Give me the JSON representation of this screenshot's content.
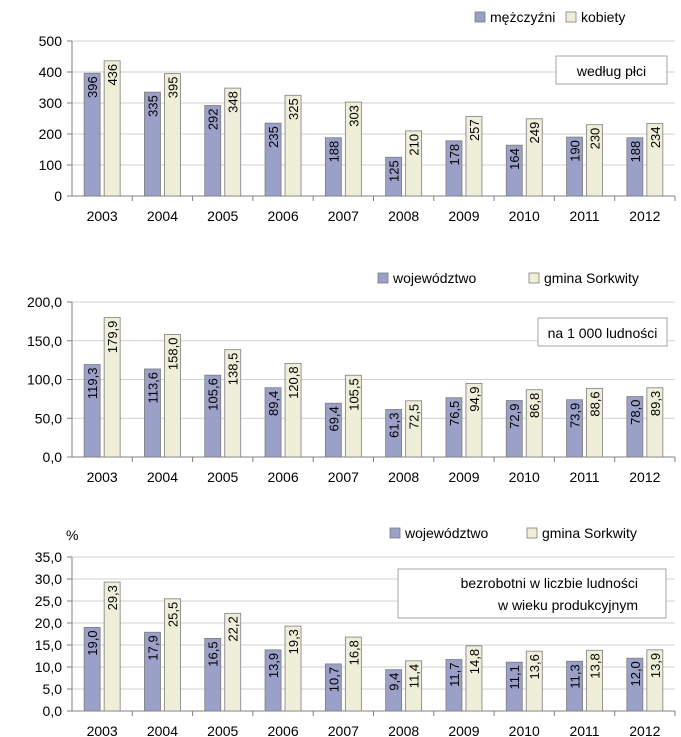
{
  "chart_data": [
    {
      "type": "bar",
      "categories": [
        "2003",
        "2004",
        "2005",
        "2006",
        "2007",
        "2008",
        "2009",
        "2010",
        "2011",
        "2012"
      ],
      "series": [
        {
          "name": "mężczyźni",
          "values": [
            396,
            335,
            292,
            235,
            188,
            125,
            178,
            164,
            190,
            188
          ],
          "labels": [
            "396",
            "335",
            "292",
            "235",
            "188",
            "125",
            "178",
            "164",
            "190",
            "188"
          ],
          "color": "#9aa0c8"
        },
        {
          "name": "kobiety",
          "values": [
            436,
            395,
            348,
            325,
            303,
            210,
            257,
            249,
            230,
            234
          ],
          "labels": [
            "436",
            "395",
            "348",
            "325",
            "303",
            "210",
            "257",
            "249",
            "230",
            "234"
          ],
          "color": "#efefd9"
        }
      ],
      "ylim": [
        0,
        500
      ],
      "yticks": [
        "0",
        "100",
        "200",
        "300",
        "400",
        "500"
      ],
      "ytick_values": [
        0,
        100,
        200,
        300,
        400,
        500
      ],
      "ylabel": "",
      "annotation": [
        "według płci"
      ],
      "grid": true,
      "legend": "top-right"
    },
    {
      "type": "bar",
      "categories": [
        "2003",
        "2004",
        "2005",
        "2006",
        "2007",
        "2008",
        "2009",
        "2010",
        "2011",
        "2012"
      ],
      "series": [
        {
          "name": "województwo",
          "values": [
            119.3,
            113.6,
            105.6,
            89.4,
            69.4,
            61.3,
            76.5,
            72.9,
            73.9,
            78.0
          ],
          "labels": [
            "119,3",
            "113,6",
            "105,6",
            "89,4",
            "69,4",
            "61,3",
            "76,5",
            "72,9",
            "73,9",
            "78,0"
          ],
          "color": "#9aa0c8"
        },
        {
          "name": "gmina Sorkwity",
          "values": [
            179.9,
            158.0,
            138.5,
            120.8,
            105.5,
            72.5,
            94.9,
            86.8,
            88.6,
            89.3
          ],
          "labels": [
            "179,9",
            "158,0",
            "138,5",
            "120,8",
            "105,5",
            "72,5",
            "94,9",
            "86,8",
            "88,6",
            "89,3"
          ],
          "color": "#efefd9"
        }
      ],
      "ylim": [
        0,
        200
      ],
      "yticks": [
        "0,0",
        "50,0",
        "100,0",
        "150,0",
        "200,0"
      ],
      "ytick_values": [
        0,
        50,
        100,
        150,
        200
      ],
      "ylabel": "",
      "annotation": [
        "na 1 000 ludności"
      ],
      "grid": true,
      "legend": "top-right"
    },
    {
      "type": "bar",
      "categories": [
        "2003",
        "2004",
        "2005",
        "2006",
        "2007",
        "2008",
        "2009",
        "2010",
        "2011",
        "2012"
      ],
      "series": [
        {
          "name": "województwo",
          "values": [
            19.0,
            17.9,
            16.5,
            13.9,
            10.7,
            9.4,
            11.7,
            11.1,
            11.3,
            12.0
          ],
          "labels": [
            "19,0",
            "17,9",
            "16,5",
            "13,9",
            "10,7",
            "9,4",
            "11,7",
            "11,1",
            "11,3",
            "12,0"
          ],
          "color": "#9aa0c8"
        },
        {
          "name": "gmina Sorkwity",
          "values": [
            29.3,
            25.5,
            22.2,
            19.3,
            16.8,
            11.4,
            14.8,
            13.6,
            13.8,
            13.9
          ],
          "labels": [
            "29,3",
            "25,5",
            "22,2",
            "19,3",
            "16,8",
            "11,4",
            "14,8",
            "13,6",
            "13,8",
            "13,9"
          ],
          "color": "#efefd9"
        }
      ],
      "ylim": [
        0,
        35
      ],
      "yticks": [
        "0,0",
        "5,0",
        "10,0",
        "15,0",
        "20,0",
        "25,0",
        "30,0",
        "35,0"
      ],
      "ytick_values": [
        0,
        5,
        10,
        15,
        20,
        25,
        30,
        35
      ],
      "ylabel": "%",
      "annotation": [
        "bezrobotni w liczbie ludności",
        "w wieku produkcyjnym"
      ],
      "grid": true,
      "legend": "top-right"
    }
  ]
}
